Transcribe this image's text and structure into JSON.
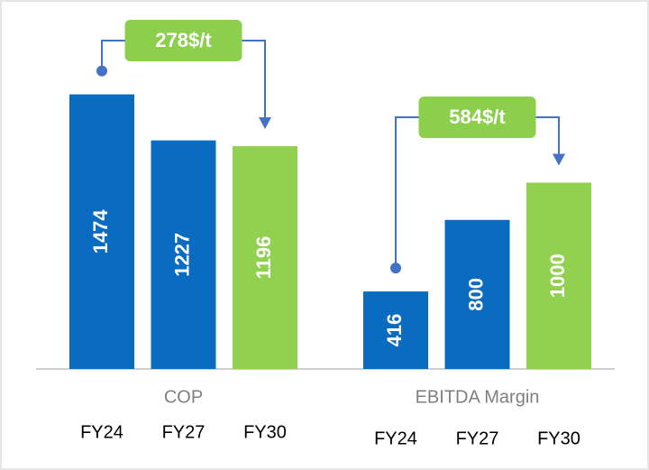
{
  "chart_data": [
    {
      "type": "bar",
      "title": "COP",
      "categories": [
        "FY24",
        "FY27",
        "FY30"
      ],
      "values": [
        1474,
        1227,
        1196
      ],
      "colors": [
        "#0a6cc0",
        "#0a6cc0",
        "#92d050"
      ],
      "annotation": "278$/t",
      "annotation_color": "#8ccf4d",
      "connector_color": "#4472c4"
    },
    {
      "type": "bar",
      "title": "EBITDA Margin",
      "categories": [
        "FY24",
        "FY27",
        "FY30"
      ],
      "values": [
        416,
        800,
        1000
      ],
      "colors": [
        "#0a6cc0",
        "#0a6cc0",
        "#92d050"
      ],
      "annotation": "584$/t",
      "annotation_color": "#8ccf4d",
      "connector_color": "#4472c4"
    }
  ]
}
